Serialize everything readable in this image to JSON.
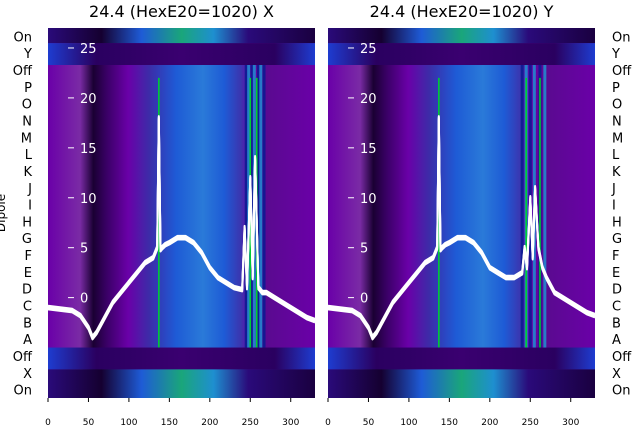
{
  "chart_data": [
    {
      "type": "heatmap",
      "title": "24.4 (HexE20=1020) X",
      "ylabel": "Dipole",
      "x_ticks": [
        0,
        50,
        100,
        150,
        200,
        250,
        300
      ],
      "xlim": [
        0,
        330
      ],
      "y_rows": [
        "On",
        "X",
        "Off",
        "A",
        "B",
        "C",
        "D",
        "E",
        "F",
        "G",
        "H",
        "I",
        "J",
        "K",
        "L",
        "M",
        "N",
        "O",
        "P",
        "Off",
        "Y",
        "On"
      ],
      "overlay_ticks": [
        0,
        5,
        10,
        15,
        20,
        25
      ],
      "overlay_ylim": [
        -5,
        27
      ],
      "trace_series": [
        {
          "x": [
            0,
            20,
            30,
            40,
            50,
            55,
            60,
            70,
            80,
            90,
            100,
            110,
            120,
            130,
            135,
            137,
            139,
            141,
            145,
            150,
            160,
            170,
            180,
            190,
            200,
            210,
            220,
            230,
            240,
            243,
            246,
            250,
            253,
            256,
            260,
            265,
            270,
            280,
            290,
            300,
            310,
            320,
            330
          ],
          "y": [
            -1,
            -1.2,
            -1.3,
            -1.8,
            -3,
            -4,
            -3.5,
            -2,
            -0.5,
            0.5,
            1.5,
            2.5,
            3.5,
            4,
            5,
            18,
            4.8,
            5,
            5.3,
            5.5,
            6,
            6,
            5.5,
            4.5,
            3,
            2,
            1.5,
            1,
            0.8,
            7,
            1,
            12,
            2,
            14,
            1,
            0.5,
            0.5,
            0,
            -0.5,
            -1,
            -1.5,
            -2,
            -2.3
          ]
        }
      ],
      "green_lines": [
        137,
        250,
        258
      ],
      "stripe_columns": [
        245,
        248,
        252,
        255,
        260,
        263,
        267
      ]
    },
    {
      "type": "heatmap",
      "title": "24.4 (HexE20=1020) Y",
      "x_ticks": [
        0,
        50,
        100,
        150,
        200,
        250,
        300
      ],
      "xlim": [
        0,
        330
      ],
      "y_rows": [
        "On",
        "X",
        "Off",
        "A",
        "B",
        "C",
        "D",
        "E",
        "F",
        "G",
        "H",
        "I",
        "J",
        "K",
        "L",
        "M",
        "N",
        "O",
        "P",
        "Off",
        "Y",
        "On"
      ],
      "overlay_ticks": [
        0,
        5,
        10,
        15,
        20,
        25
      ],
      "overlay_ylim": [
        -5,
        27
      ],
      "trace_series": [
        {
          "x": [
            0,
            20,
            30,
            40,
            50,
            55,
            60,
            70,
            80,
            90,
            100,
            110,
            120,
            130,
            135,
            137,
            139,
            141,
            145,
            150,
            160,
            170,
            180,
            190,
            200,
            210,
            220,
            230,
            240,
            243,
            246,
            250,
            253,
            256,
            260,
            265,
            270,
            280,
            290,
            300,
            310,
            320,
            330
          ],
          "y": [
            -1,
            -1.2,
            -1.3,
            -1.8,
            -3,
            -4,
            -3.5,
            -2,
            -0.5,
            0.5,
            1.5,
            2.5,
            3.5,
            4,
            5,
            18,
            4.8,
            5,
            5.3,
            5.5,
            6,
            6,
            5.5,
            4.5,
            3,
            2.5,
            2,
            2,
            2.5,
            5,
            3,
            10,
            4,
            11,
            5,
            3,
            2,
            0.5,
            0,
            -0.5,
            -1,
            -1.5,
            -1.8
          ]
        }
      ],
      "green_lines": [
        137,
        245,
        262
      ],
      "stripe_columns": [
        240,
        245,
        250,
        255,
        262,
        268
      ]
    }
  ],
  "colors": {
    "heat_low": "#1a0033",
    "heat_mid": "#6a00a8",
    "heat_blue": "#1e5bd6",
    "heat_high": "#1aa67a",
    "trace": "#ffffff",
    "marker": "#00cc33"
  }
}
